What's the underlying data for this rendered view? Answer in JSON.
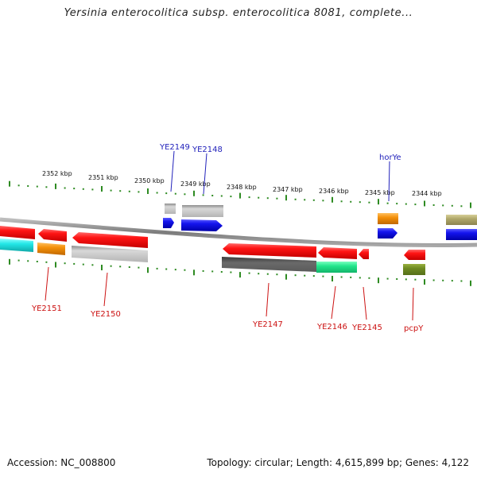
{
  "title": "Yersinia enterocolitica subsp. enterocolitica 8081, complete...",
  "footer": {
    "accession": "Accession: NC_008800",
    "topology": "Topology: circular; Length: 4,615,899 bp; Genes: 4,122"
  },
  "colors": {
    "backbone": "#8a8a8a",
    "tick": "#2e8b22",
    "upper_label": "#2222bb",
    "lower_label": "#cc1111",
    "red": "#e41010",
    "blue": "#1010dd",
    "orange": "#f08a0a",
    "cyan": "#22dddd",
    "silver": "#bdbdbd",
    "darkgray": "#5c5c5c",
    "teal": "#22dd88",
    "olive": "#6b8422",
    "khaki": "#a8a060"
  },
  "scale_labels": [
    "2352 kbp",
    "2351 kbp",
    "2350 kbp",
    "2349 kbp",
    "2348 kbp",
    "2347 kbp",
    "2346 kbp",
    "2345 kbp",
    "2344 kbp"
  ],
  "upper_gene_labels": [
    "YE2149",
    "YE2148",
    "horYe"
  ],
  "lower_gene_labels": [
    "YE2151",
    "YE2150",
    "YE2147",
    "YE2146",
    "YE2145",
    "pcpY"
  ]
}
